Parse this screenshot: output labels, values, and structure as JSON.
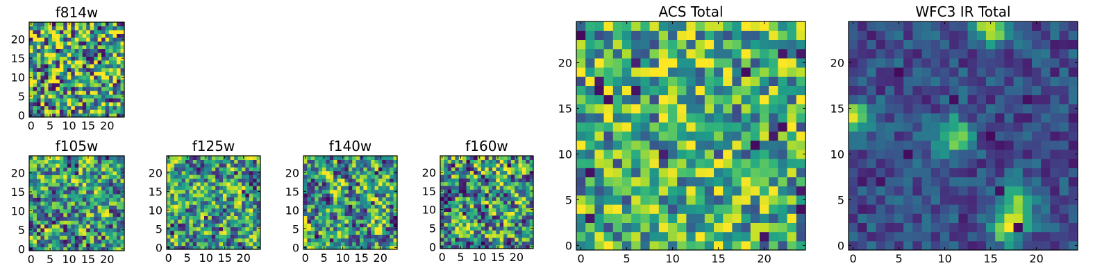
{
  "chart_data": [
    {
      "type": "heatmap",
      "title": "f814w",
      "colormap": "viridis",
      "grid_size": 25,
      "seed": 11,
      "smoothness": 0,
      "bias": 0.58,
      "contrast": 0.55,
      "hotspots": [
        [
          12,
          16,
          0.15
        ]
      ],
      "xlim": [
        0,
        24
      ],
      "ylim": [
        0,
        24
      ],
      "xticks": [
        0,
        5,
        10,
        15,
        20
      ],
      "yticks": [
        0,
        5,
        10,
        15,
        20
      ]
    },
    {
      "type": "heatmap",
      "title": "f105w",
      "colormap": "viridis",
      "grid_size": 25,
      "seed": 23,
      "smoothness": 1,
      "bias": 0.56,
      "contrast": 0.7,
      "hotspots": [
        [
          12,
          20,
          0.3
        ],
        [
          18,
          17,
          0.15
        ]
      ],
      "xlim": [
        0,
        24
      ],
      "ylim": [
        0,
        24
      ],
      "xticks": [
        0,
        5,
        10,
        15,
        20
      ],
      "yticks": [
        0,
        5,
        10,
        15,
        20
      ]
    },
    {
      "type": "heatmap",
      "title": "f125w",
      "colormap": "viridis",
      "grid_size": 25,
      "seed": 37,
      "smoothness": 1,
      "bias": 0.56,
      "contrast": 0.7,
      "hotspots": [
        [
          18,
          16,
          0.25
        ]
      ],
      "xlim": [
        0,
        24
      ],
      "ylim": [
        0,
        24
      ],
      "xticks": [
        0,
        5,
        10,
        15,
        20
      ],
      "yticks": [
        0,
        5,
        10,
        15,
        20
      ]
    },
    {
      "type": "heatmap",
      "title": "f140w",
      "colormap": "viridis",
      "grid_size": 25,
      "seed": 51,
      "smoothness": 1,
      "bias": 0.56,
      "contrast": 0.72,
      "hotspots": [
        [
          15,
          17,
          0.3
        ]
      ],
      "xlim": [
        0,
        24
      ],
      "ylim": [
        0,
        24
      ],
      "xticks": [
        0,
        5,
        10,
        15,
        20
      ],
      "yticks": [
        0,
        5,
        10,
        15,
        20
      ]
    },
    {
      "type": "heatmap",
      "title": "f160w",
      "colormap": "viridis",
      "grid_size": 25,
      "seed": 67,
      "smoothness": 1,
      "bias": 0.55,
      "contrast": 0.75,
      "hotspots": [
        [
          16,
          20,
          0.3
        ],
        [
          20,
          14,
          0.2
        ]
      ],
      "xlim": [
        0,
        24
      ],
      "ylim": [
        0,
        24
      ],
      "xticks": [
        0,
        5,
        10,
        15,
        20
      ],
      "yticks": [
        0,
        5,
        10,
        15,
        20
      ]
    },
    {
      "type": "heatmap",
      "title": "ACS Total",
      "colormap": "viridis",
      "grid_size": 25,
      "seed": 89,
      "smoothness": 0,
      "bias": 0.64,
      "contrast": 0.42,
      "hotspots": [],
      "xlim": [
        0,
        24
      ],
      "ylim": [
        0,
        24
      ],
      "xticks": [
        0,
        5,
        10,
        15,
        20
      ],
      "yticks": [
        0,
        5,
        10,
        15,
        20
      ]
    },
    {
      "type": "heatmap",
      "title": "WFC3 IR Total",
      "colormap": "viridis",
      "grid_size": 25,
      "seed": 101,
      "smoothness": 0,
      "bias": 0.24,
      "contrast": 0.16,
      "hotspots": [
        [
          15,
          24,
          0.7
        ],
        [
          11,
          12,
          0.65
        ],
        [
          17,
          2,
          0.65
        ],
        [
          0,
          14,
          0.6
        ],
        [
          18,
          5,
          0.5
        ]
      ],
      "xlim": [
        0,
        24
      ],
      "ylim": [
        0,
        24
      ],
      "xticks": [
        0,
        5,
        10,
        15,
        20
      ],
      "yticks": [
        0,
        5,
        10,
        15,
        20
      ]
    }
  ]
}
